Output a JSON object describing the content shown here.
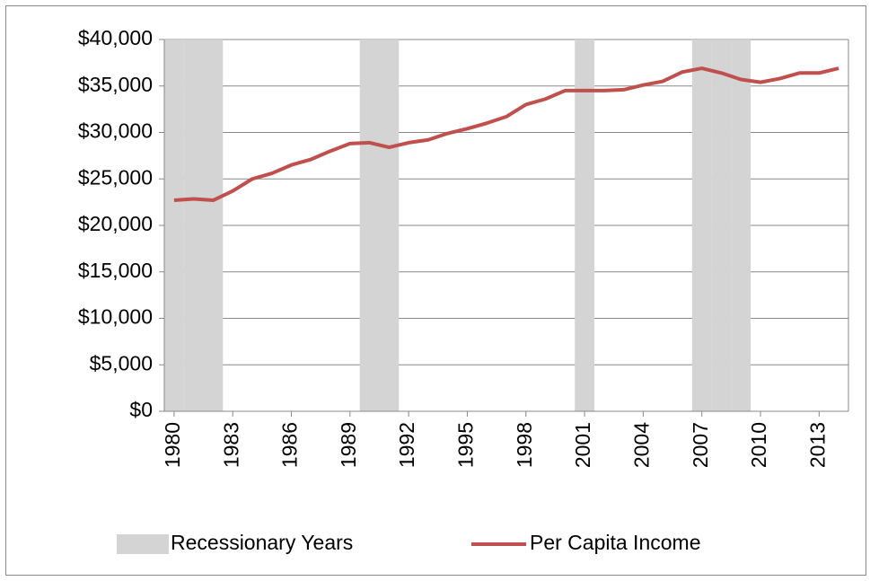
{
  "chart_data": {
    "type": "line",
    "x": [
      1980,
      1981,
      1982,
      1983,
      1984,
      1985,
      1986,
      1987,
      1988,
      1989,
      1990,
      1991,
      1992,
      1993,
      1994,
      1995,
      1996,
      1997,
      1998,
      1999,
      2000,
      2001,
      2002,
      2003,
      2004,
      2005,
      2006,
      2007,
      2008,
      2009,
      2010,
      2011,
      2012,
      2013,
      2014
    ],
    "xlim": [
      1979.5,
      2014.5
    ],
    "xticks": [
      1980,
      1983,
      1986,
      1989,
      1992,
      1995,
      1998,
      2001,
      2004,
      2007,
      2010,
      2013
    ],
    "ylim": [
      0,
      40000
    ],
    "yticks": [
      {
        "value": 0,
        "label": "$0"
      },
      {
        "value": 5000,
        "label": "$5,000"
      },
      {
        "value": 10000,
        "label": "$10,000"
      },
      {
        "value": 15000,
        "label": "$15,000"
      },
      {
        "value": 20000,
        "label": "$20,000"
      },
      {
        "value": 25000,
        "label": "$25,000"
      },
      {
        "value": 30000,
        "label": "$30,000"
      },
      {
        "value": 35000,
        "label": "$35,000"
      },
      {
        "value": 40000,
        "label": "$40,000"
      }
    ],
    "grid": true,
    "legend": "bottom",
    "series": [
      {
        "name": "Recessionary Years",
        "type": "bar",
        "color": "#d4d4d4",
        "values": [
          40000,
          40000,
          40000,
          0,
          0,
          0,
          0,
          0,
          0,
          0,
          40000,
          40000,
          0,
          0,
          0,
          0,
          0,
          0,
          0,
          0,
          0,
          40000,
          0,
          0,
          0,
          0,
          0,
          40000,
          40000,
          40000,
          0,
          0,
          0,
          0,
          0
        ]
      },
      {
        "name": "Per Capita Income",
        "type": "line",
        "color": "#c0504d",
        "values": [
          22700,
          22850,
          22700,
          23700,
          25000,
          25600,
          26500,
          27100,
          28000,
          28800,
          28900,
          28400,
          28900,
          29200,
          29900,
          30400,
          31000,
          31700,
          33000,
          33600,
          34500,
          34500,
          34500,
          34600,
          35100,
          35500,
          36500,
          36900,
          36400,
          35700,
          35400,
          35800,
          36400,
          36400,
          36900
        ]
      }
    ]
  }
}
